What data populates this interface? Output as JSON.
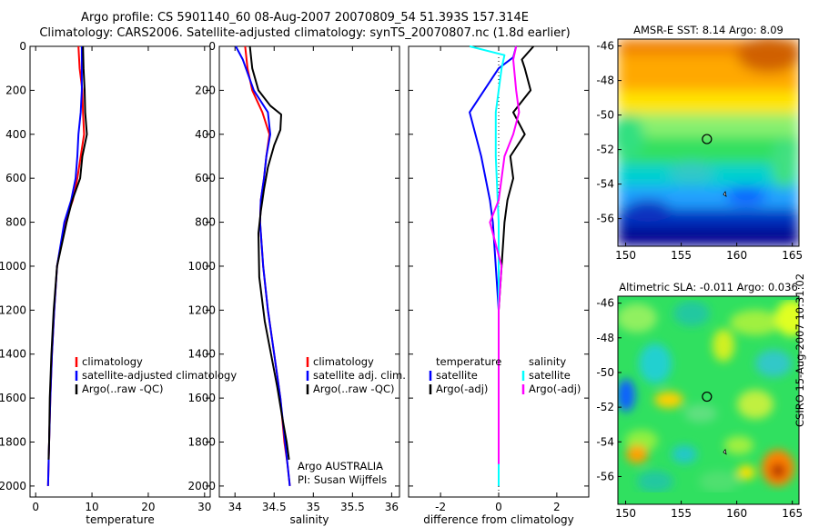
{
  "title": {
    "line1": "Argo profile: CS 5901140_60 08-Aug-2007 20070809_54 51.393S 157.314E",
    "line2": "Climatology: CARS2006. Satellite-adjusted climatology: synTS_20070807.nc (1.8d earlier)"
  },
  "stamp": "CSIRO 15-Aug-2007 10:31:02",
  "colors": {
    "climatology": "#ff0000",
    "satellite": "#0000ff",
    "argo": "#000000",
    "sal_sat": "#00ffff",
    "sal_argo": "#ff00ff"
  },
  "chart_data": [
    {
      "type": "line",
      "xlabel": "temperature",
      "xticks": [
        "0",
        "10",
        "20",
        "30"
      ],
      "xlim": [
        -1,
        31
      ],
      "yticks": [
        "0",
        "200",
        "400",
        "600",
        "800",
        "1000",
        "1200",
        "1400",
        "1600",
        "1800",
        "2000"
      ],
      "ylim": [
        0,
        2050
      ],
      "legend": [
        "climatology",
        "satellite-adjusted climatology",
        "Argo(..raw -QC)"
      ],
      "series": [
        {
          "name": "climatology",
          "color": "#ff0000",
          "x": [
            7.6,
            7.8,
            8.3,
            8.4,
            8.6,
            8.0,
            7.4,
            6.6,
            5.2,
            3.8,
            3.3,
            2.9,
            2.6,
            2.4,
            2.3,
            2.2
          ],
          "y": [
            0,
            100,
            200,
            300,
            400,
            500,
            600,
            700,
            800,
            1000,
            1200,
            1400,
            1600,
            1800,
            1900,
            2000
          ]
        },
        {
          "name": "satellite-adjusted climatology",
          "color": "#0000ff",
          "x": [
            8.2,
            8.2,
            8.2,
            8.0,
            7.6,
            7.4,
            7.1,
            6.3,
            5.1,
            3.8,
            3.3,
            2.9,
            2.6,
            2.4,
            2.3,
            2.2
          ],
          "y": [
            0,
            50,
            200,
            300,
            400,
            500,
            600,
            700,
            800,
            1000,
            1200,
            1400,
            1600,
            1800,
            1900,
            2000
          ]
        },
        {
          "name": "Argo(..raw -QC)",
          "color": "#000000",
          "x": [
            8.4,
            8.5,
            8.7,
            8.8,
            9.1,
            8.3,
            7.9,
            6.5,
            5.5,
            3.8,
            3.2,
            2.8,
            2.5,
            2.4,
            2.3
          ],
          "y": [
            0,
            100,
            200,
            300,
            400,
            500,
            600,
            700,
            800,
            1000,
            1200,
            1400,
            1600,
            1800,
            1880
          ]
        }
      ]
    },
    {
      "type": "line",
      "xlabel": "salinity",
      "xticks": [
        "34",
        "34.5",
        "35",
        "35.5",
        "36"
      ],
      "xlim": [
        33.8,
        36.1
      ],
      "yticks": [
        "0",
        "200",
        "400",
        "600",
        "800",
        "1000",
        "1200",
        "1400",
        "1600",
        "1800",
        "2000"
      ],
      "ylim": [
        0,
        2050
      ],
      "legend": [
        "climatology",
        "satellite adj. clim.",
        "Argo(..raw -QC)"
      ],
      "annotation": [
        "Argo AUSTRALIA",
        "PI: Susan Wijffels"
      ],
      "series": [
        {
          "name": "climatology",
          "color": "#ff0000",
          "x": [
            34.13,
            34.16,
            34.22,
            34.35,
            34.44,
            34.4,
            34.37,
            34.33,
            34.32,
            34.36,
            34.42,
            34.5,
            34.58,
            34.63,
            34.67,
            34.7
          ],
          "y": [
            0,
            100,
            200,
            300,
            400,
            500,
            600,
            700,
            800,
            1000,
            1200,
            1400,
            1600,
            1800,
            1900,
            2000
          ]
        },
        {
          "name": "satellite adj. clim.",
          "color": "#0000ff",
          "x": [
            34.01,
            34.1,
            34.24,
            34.42,
            34.45,
            34.4,
            34.37,
            34.33,
            34.32,
            34.36,
            34.42,
            34.5,
            34.58,
            34.64,
            34.67,
            34.7
          ],
          "y": [
            0,
            60,
            200,
            300,
            400,
            500,
            600,
            700,
            800,
            1000,
            1200,
            1400,
            1600,
            1800,
            1900,
            2000
          ]
        },
        {
          "name": "Argo(..raw -QC)",
          "color": "#000000",
          "x": [
            34.19,
            34.22,
            34.3,
            34.45,
            34.59,
            34.58,
            34.5,
            34.42,
            34.37,
            34.33,
            34.3,
            34.31,
            34.38,
            34.46,
            34.54,
            34.61,
            34.66,
            34.69
          ],
          "y": [
            0,
            100,
            200,
            270,
            310,
            380,
            450,
            550,
            650,
            750,
            850,
            1050,
            1250,
            1400,
            1550,
            1700,
            1800,
            1880
          ]
        }
      ]
    },
    {
      "type": "line",
      "xlabel": "difference from climatology",
      "xticks": [
        "-2",
        "0",
        "2"
      ],
      "xlim": [
        -3.1,
        3.1
      ],
      "yticks": [],
      "ylim": [
        0,
        2050
      ],
      "legend_left": [
        "temperature",
        "satellite",
        "Argo(-adj)"
      ],
      "legend_right": [
        "salinity",
        "satellite",
        "Argo(-adj)"
      ],
      "series": [
        {
          "name": "temperature satellite",
          "color": "#0000ff",
          "x": [
            0.6,
            0.5,
            0,
            -0.5,
            -1.0,
            -0.6,
            -0.3,
            -0.2,
            -0.1,
            0,
            0,
            0
          ],
          "y": [
            0,
            50,
            100,
            200,
            300,
            500,
            700,
            800,
            1000,
            1200,
            1600,
            2000
          ]
        },
        {
          "name": "temperature Argo(-adj)",
          "color": "#000000",
          "x": [
            1.2,
            0.8,
            0.9,
            1.1,
            0.5,
            0.9,
            0.4,
            0.5,
            0.3,
            0.2,
            0.1,
            0,
            0,
            0
          ],
          "y": [
            0,
            60,
            100,
            200,
            300,
            400,
            500,
            600,
            700,
            800,
            1000,
            1200,
            1600,
            1900
          ]
        },
        {
          "name": "salinity satellite",
          "color": "#00ffff",
          "x": [
            -1.0,
            0.2,
            0.1,
            0.0,
            -0.1,
            -0.1,
            0,
            0,
            0
          ],
          "y": [
            0,
            40,
            100,
            200,
            300,
            500,
            800,
            1200,
            2000
          ]
        },
        {
          "name": "salinity Argo(-adj)",
          "color": "#ff00ff",
          "x": [
            0.6,
            0.5,
            0.6,
            0.7,
            0.5,
            0.2,
            0.1,
            0.0,
            -0.3,
            0.1,
            0,
            0,
            0
          ],
          "y": [
            0,
            60,
            200,
            300,
            400,
            500,
            600,
            700,
            800,
            1000,
            1200,
            1600,
            1900
          ]
        }
      ]
    },
    {
      "type": "heatmap",
      "title": "AMSR-E SST: 8.14 Argo: 8.09",
      "xticks": [
        "150",
        "155",
        "160",
        "165"
      ],
      "yticks": [
        "-46",
        "-48",
        "-50",
        "-52",
        "-54",
        "-56"
      ],
      "xlim": [
        149.3,
        165.6
      ],
      "ylim": [
        -57.6,
        -45.6
      ],
      "marker": {
        "lon": 157.314,
        "lat": -51.393
      }
    },
    {
      "type": "heatmap",
      "title": "Altimetric SLA: -0.011 Argo: 0.036",
      "xticks": [
        "150",
        "155",
        "160",
        "165"
      ],
      "yticks": [
        "-46",
        "-48",
        "-50",
        "-52",
        "-54",
        "-56"
      ],
      "xlim": [
        149.3,
        165.6
      ],
      "ylim": [
        -57.6,
        -45.6
      ],
      "marker": {
        "lon": 157.314,
        "lat": -51.393
      }
    }
  ]
}
